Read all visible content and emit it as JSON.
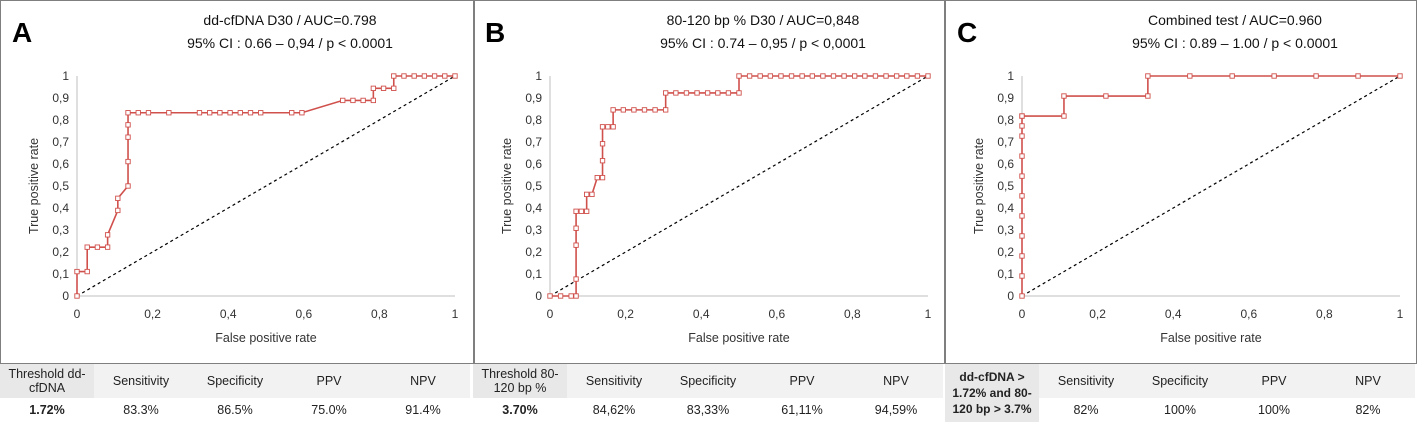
{
  "chart_data": [
    {
      "type": "line",
      "panel_letter": "A",
      "title": "dd-cfDNA D30 / AUC=0.798",
      "subtitle": "95% CI : 0.66 – 0,94 / p < 0.0001",
      "xlabel": "False positive rate",
      "ylabel": "True positive rate",
      "xlim": [
        0,
        1
      ],
      "ylim": [
        0,
        1
      ],
      "x_ticks": [
        "0",
        "0,2",
        "0,4",
        "0,6",
        "0,8",
        "1"
      ],
      "y_ticks": [
        "0",
        "0,1",
        "0,2",
        "0,3",
        "0,4",
        "0,5",
        "0,6",
        "0,7",
        "0,8",
        "0,9",
        "1"
      ],
      "series": [
        {
          "name": "ROC",
          "color": "#d0504c",
          "x": [
            0,
            0,
            0.027,
            0.027,
            0.054,
            0.081,
            0.081,
            0.108,
            0.108,
            0.135,
            0.135,
            0.135,
            0.135,
            0.135,
            0.162,
            0.189,
            0.243,
            0.324,
            0.351,
            0.378,
            0.405,
            0.432,
            0.459,
            0.486,
            0.568,
            0.595,
            0.703,
            0.73,
            0.757,
            0.784,
            0.784,
            0.811,
            0.838,
            0.838,
            0.865,
            0.892,
            0.919,
            0.946,
            0.973,
            1
          ],
          "y": [
            0,
            0.111,
            0.111,
            0.222,
            0.222,
            0.222,
            0.278,
            0.389,
            0.444,
            0.5,
            0.611,
            0.722,
            0.778,
            0.833,
            0.833,
            0.833,
            0.833,
            0.833,
            0.833,
            0.833,
            0.833,
            0.833,
            0.833,
            0.833,
            0.833,
            0.833,
            0.889,
            0.889,
            0.889,
            0.889,
            0.944,
            0.944,
            0.944,
            1,
            1,
            1,
            1,
            1,
            1,
            1
          ]
        },
        {
          "name": "Reference",
          "x": [
            0,
            1
          ],
          "y": [
            0,
            1
          ],
          "style": "dashed"
        }
      ]
    },
    {
      "type": "line",
      "panel_letter": "B",
      "title": "80-120 bp % D30 / AUC=0,848",
      "subtitle": "95% CI : 0.74 – 0,95 / p < 0,0001",
      "xlabel": "False positive rate",
      "ylabel": "True positive rate",
      "xlim": [
        0,
        1
      ],
      "ylim": [
        0,
        1
      ],
      "x_ticks": [
        "0",
        "0,2",
        "0,4",
        "0,6",
        "0,8",
        "1"
      ],
      "y_ticks": [
        "0",
        "0,1",
        "0,2",
        "0,3",
        "0,4",
        "0,5",
        "0,6",
        "0,7",
        "0,8",
        "0,9",
        "1"
      ],
      "series": [
        {
          "name": "ROC",
          "color": "#d0504c",
          "x": [
            0,
            0.028,
            0.056,
            0.069,
            0.069,
            0.069,
            0.069,
            0.069,
            0.083,
            0.097,
            0.097,
            0.111,
            0.125,
            0.139,
            0.139,
            0.139,
            0.139,
            0.153,
            0.167,
            0.167,
            0.194,
            0.222,
            0.25,
            0.278,
            0.306,
            0.306,
            0.333,
            0.361,
            0.389,
            0.417,
            0.444,
            0.472,
            0.5,
            0.5,
            0.528,
            0.556,
            0.583,
            0.611,
            0.639,
            0.667,
            0.694,
            0.722,
            0.75,
            0.778,
            0.806,
            0.833,
            0.861,
            0.889,
            0.917,
            0.944,
            0.972,
            1
          ],
          "y": [
            0,
            0,
            0,
            0,
            0.077,
            0.231,
            0.308,
            0.385,
            0.385,
            0.385,
            0.462,
            0.462,
            0.538,
            0.538,
            0.615,
            0.692,
            0.769,
            0.769,
            0.769,
            0.846,
            0.846,
            0.846,
            0.846,
            0.846,
            0.846,
            0.923,
            0.923,
            0.923,
            0.923,
            0.923,
            0.923,
            0.923,
            0.923,
            1,
            1,
            1,
            1,
            1,
            1,
            1,
            1,
            1,
            1,
            1,
            1,
            1,
            1,
            1,
            1,
            1,
            1,
            1
          ]
        },
        {
          "name": "Reference",
          "x": [
            0,
            1
          ],
          "y": [
            0,
            1
          ],
          "style": "dashed"
        }
      ]
    },
    {
      "type": "line",
      "panel_letter": "C",
      "title": "Combined test / AUC=0.960",
      "subtitle": "95% CI : 0.89 – 1.00 / p < 0.0001",
      "xlabel": "False positive rate",
      "ylabel": "True positive rate",
      "xlim": [
        0,
        1
      ],
      "ylim": [
        0,
        1
      ],
      "x_ticks": [
        "0",
        "0,2",
        "0,4",
        "0,6",
        "0,8",
        "1"
      ],
      "y_ticks": [
        "0",
        "0,1",
        "0,2",
        "0,3",
        "0,4",
        "0,5",
        "0,6",
        "0,7",
        "0,8",
        "0,9",
        "1"
      ],
      "series": [
        {
          "name": "ROC",
          "color": "#d0504c",
          "x": [
            0,
            0,
            0,
            0,
            0,
            0,
            0,
            0,
            0,
            0,
            0,
            0,
            0.111,
            0.111,
            0.222,
            0.333,
            0.333,
            0.444,
            0.556,
            0.667,
            0.778,
            0.889,
            1
          ],
          "y": [
            0,
            0.091,
            0.182,
            0.273,
            0.364,
            0.455,
            0.545,
            0.636,
            0.727,
            0.773,
            0.818,
            0.818,
            0.818,
            0.909,
            0.909,
            0.909,
            1,
            1,
            1,
            1,
            1,
            1,
            1
          ]
        },
        {
          "name": "Reference",
          "x": [
            0,
            1
          ],
          "y": [
            0,
            1
          ],
          "style": "dashed"
        }
      ]
    }
  ],
  "tables": [
    {
      "threshold_header": "Threshold dd-cfDNA",
      "threshold_value": "1.72%",
      "headers": [
        "Sensitivity",
        "Specificity",
        "PPV",
        "NPV"
      ],
      "values": [
        "83.3%",
        "86.5%",
        "75.0%",
        "91.4%"
      ]
    },
    {
      "threshold_header": "Threshold 80-120 bp %",
      "threshold_value": "3.70%",
      "headers": [
        "Sensitivity",
        "Specificity",
        "PPV",
        "NPV"
      ],
      "values": [
        "84,62%",
        "83,33%",
        "61,11%",
        "94,59%"
      ]
    },
    {
      "threshold_header": "dd-cfDNA > 1.72% and 80-120 bp > 3.7%",
      "threshold_value": "",
      "headers": [
        "Sensitivity",
        "Specificity",
        "PPV",
        "NPV"
      ],
      "values": [
        "82%",
        "100%",
        "100%",
        "82%"
      ]
    }
  ]
}
